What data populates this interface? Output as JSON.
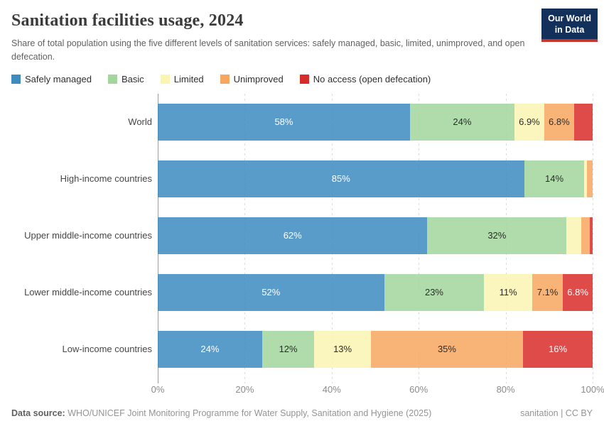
{
  "header": {
    "logo_line1": "Our World",
    "logo_line2": "in Data"
  },
  "chart_data": {
    "type": "bar",
    "variant": "horizontal-stacked",
    "title": "Sanitation facilities usage, 2024",
    "subtitle": "Share of total population using the five different levels of sanitation services: safely managed, basic, limited, unimproved, and open defecation.",
    "categories": [
      "World",
      "High-income countries",
      "Upper middle-income countries",
      "Lower middle-income countries",
      "Low-income countries"
    ],
    "series": [
      {
        "name": "Safely managed",
        "color": "#3d8bbf",
        "label_text_color": "#ffffff",
        "values": [
          58,
          85,
          62,
          52,
          24
        ],
        "labels": [
          "58%",
          "85%",
          "62%",
          "52%",
          "24%"
        ]
      },
      {
        "name": "Basic",
        "color": "#a2d69c",
        "label_text_color": "#2d2d2d",
        "values": [
          24,
          14,
          32,
          23,
          12
        ],
        "labels": [
          "24%",
          "14%",
          "32%",
          "23%",
          "12%"
        ]
      },
      {
        "name": "Limited",
        "color": "#faf5b1",
        "label_text_color": "#2d2d2d",
        "values": [
          6.9,
          0.6,
          3.4,
          11,
          13
        ],
        "labels": [
          "6.9%",
          "",
          "",
          "11%",
          "13%"
        ]
      },
      {
        "name": "Unimproved",
        "color": "#f7a75f",
        "label_text_color": "#2d2d2d",
        "values": [
          6.8,
          1.3,
          1.9,
          7.1,
          35
        ],
        "labels": [
          "6.8%",
          "",
          "",
          "7.1%",
          "35%"
        ]
      },
      {
        "name": "No access (open defecation)",
        "color": "#d92b28",
        "label_text_color": "#ffffff",
        "values": [
          4.3,
          0,
          0.7,
          6.8,
          16
        ],
        "labels": [
          "",
          "",
          "",
          "6.8%",
          "16%"
        ]
      }
    ],
    "x_ticks": [
      "0%",
      "20%",
      "40%",
      "60%",
      "80%",
      "100%"
    ],
    "xlim": [
      0,
      100
    ],
    "legend_position": "top",
    "grid": "vertical-dashed"
  },
  "footer": {
    "source_label": "Data source:",
    "source_text": "WHO/UNICEF Joint Monitoring Programme for Water Supply, Sanitation and Hygiene (2025)",
    "note": "sanitation | CC BY"
  }
}
